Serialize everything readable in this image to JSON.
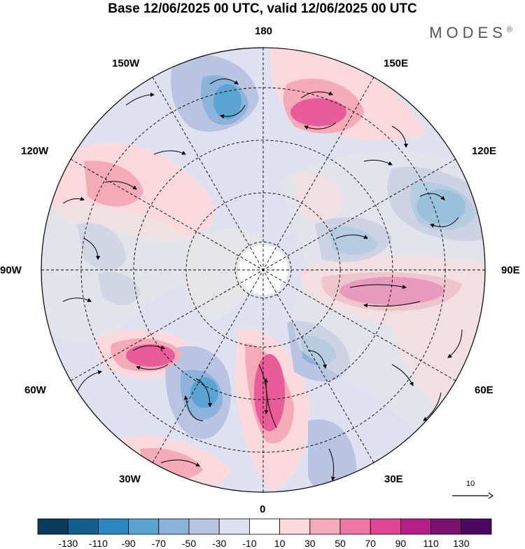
{
  "title": "Base 12/06/2025 00 UTC, valid 12/06/2025 00 UTC",
  "brand": "MODES",
  "brand_mark": "®",
  "lon_labels": {
    "top": "180",
    "top_left": "150W",
    "top_right": "150E",
    "upper_left": "120W",
    "upper_right": "120E",
    "left": "90W",
    "right": "90E",
    "lower_left": "60W",
    "lower_right": "60E",
    "bottom_left": "30W",
    "bottom_right": "30E",
    "bottom": "0"
  },
  "vector_scale_label": "10",
  "colorbar": {
    "labels": [
      "-130",
      "-110",
      "-90",
      "-70",
      "-50",
      "-30",
      "-10",
      "10",
      "30",
      "50",
      "70",
      "90",
      "110",
      "130"
    ],
    "colors": [
      "#0b3b5c",
      "#125e8f",
      "#2b86c2",
      "#5aa3d2",
      "#8cb4db",
      "#b9c3e2",
      "#e0e1f0",
      "#ffffff",
      "#fbd9dc",
      "#f5aab8",
      "#ee78a3",
      "#e04696",
      "#b81c89",
      "#7c1070",
      "#4b0860"
    ]
  },
  "anomaly_colors": {
    "strong_positive": "#e85c9a",
    "positive": "#f5aab8",
    "weak_positive": "#fbd9dc",
    "weak_negative": "#e0e1f0",
    "negative": "#b9c3e2",
    "strong_negative": "#8cb4db",
    "land": "#e6e6e6"
  }
}
